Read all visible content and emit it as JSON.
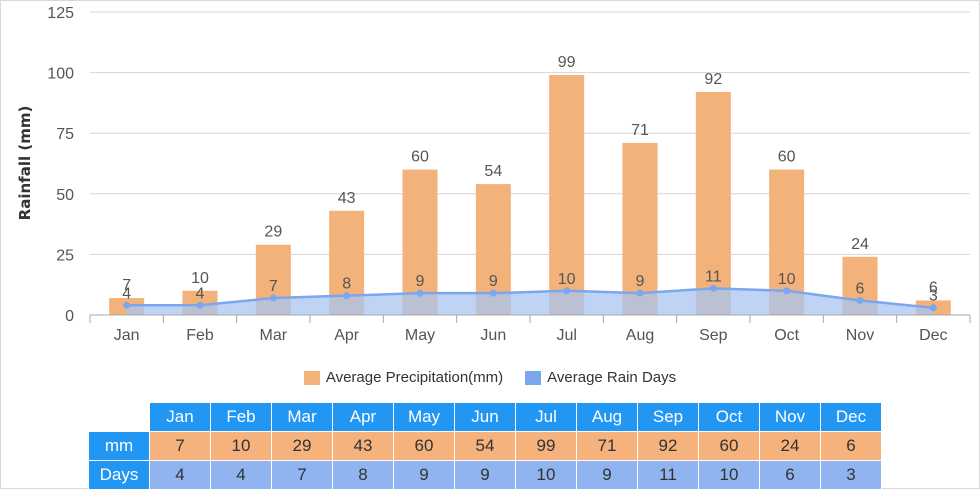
{
  "chart_data": {
    "type": "bar",
    "categories": [
      "Jan",
      "Feb",
      "Mar",
      "Apr",
      "May",
      "Jun",
      "Jul",
      "Aug",
      "Sep",
      "Oct",
      "Nov",
      "Dec"
    ],
    "series": [
      {
        "name": "Average Precipitation(mm)",
        "type": "bar",
        "values": [
          7,
          10,
          29,
          43,
          60,
          54,
          99,
          71,
          92,
          60,
          24,
          6
        ],
        "color": "#f2b27a"
      },
      {
        "name": "Average Rain Days",
        "type": "area",
        "values": [
          4,
          4,
          7,
          8,
          9,
          9,
          10,
          9,
          11,
          10,
          6,
          3
        ],
        "color": "#7ba7ee",
        "fill": "#a9c4f2"
      }
    ],
    "ylabel": "Rainfall (mm)",
    "yticks": [
      "0",
      "25",
      "50",
      "75",
      "100",
      "125"
    ],
    "ylim": [
      0,
      125
    ],
    "grid": true,
    "legend": "bottom"
  },
  "table": {
    "months": [
      "Jan",
      "Feb",
      "Mar",
      "Apr",
      "May",
      "Jun",
      "Jul",
      "Aug",
      "Sep",
      "Oct",
      "Nov",
      "Dec"
    ],
    "mm_label": "mm",
    "mm": [
      "7",
      "10",
      "29",
      "43",
      "60",
      "54",
      "99",
      "71",
      "92",
      "60",
      "24",
      "6"
    ],
    "days_label": "Days",
    "days": [
      "4",
      "4",
      "7",
      "8",
      "9",
      "9",
      "10",
      "9",
      "11",
      "10",
      "6",
      "3"
    ]
  }
}
